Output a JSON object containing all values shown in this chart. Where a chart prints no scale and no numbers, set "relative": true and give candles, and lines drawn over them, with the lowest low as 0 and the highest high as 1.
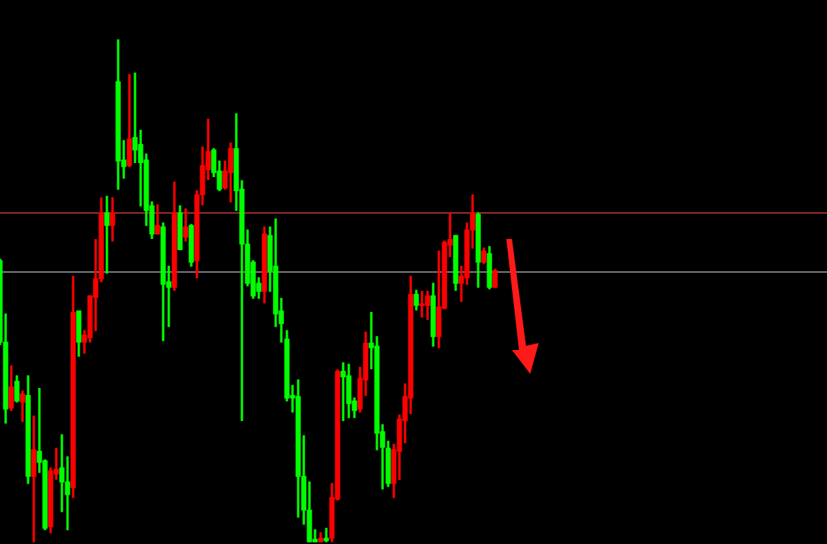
{
  "chart_data": {
    "type": "candlestick",
    "relative": true,
    "categories": [
      null,
      null,
      null,
      null,
      null,
      null,
      null,
      null,
      null,
      null,
      null,
      null,
      null,
      null,
      null,
      null,
      null,
      null,
      null,
      null,
      null,
      null,
      null,
      null,
      null,
      null,
      null,
      null,
      null,
      null,
      null,
      null,
      null,
      null,
      null,
      null,
      null,
      null,
      null,
      null,
      null,
      null,
      null,
      null,
      null,
      null,
      null,
      null,
      null,
      null,
      null,
      null,
      null,
      null,
      null,
      null,
      null,
      null,
      null,
      null,
      null,
      null,
      null,
      null,
      null,
      null,
      null,
      null,
      null,
      null,
      null,
      null,
      null,
      null,
      null,
      null,
      null,
      null,
      null,
      null,
      null,
      null,
      null,
      null,
      null,
      null,
      null,
      null,
      null
    ],
    "ohlc": [
      [
        0.56,
        0.563,
        0.393,
        0.398
      ],
      [
        0.398,
        0.454,
        0.237,
        0.265
      ],
      [
        0.267,
        0.351,
        0.262,
        0.309
      ],
      [
        0.32,
        0.331,
        0.279,
        0.281
      ],
      [
        0.279,
        0.301,
        0.24,
        0.295
      ],
      [
        0.292,
        0.331,
        0.117,
        0.131
      ],
      [
        0.131,
        0.251,
        0,
        0.184
      ],
      [
        0.181,
        0.306,
        0.139,
        0.159
      ],
      [
        0.162,
        0.164,
        0.025,
        0.028
      ],
      [
        0.031,
        0.148,
        0.019,
        0.142
      ],
      [
        0.136,
        0.187,
        0.125,
        0.145
      ],
      [
        0.148,
        0.214,
        0.061,
        0.12
      ],
      [
        0.12,
        0.17,
        0.025,
        0.095
      ],
      [
        0.109,
        0.529,
        0.089,
        0.457
      ],
      [
        0.46,
        0.46,
        0.37,
        0.398
      ],
      [
        0.398,
        0.421,
        0.376,
        0.412
      ],
      [
        0.407,
        0.49,
        0.398,
        0.49
      ],
      [
        0.487,
        0.602,
        0.421,
        0.524
      ],
      [
        0.524,
        0.685,
        0.518,
        0.655
      ],
      [
        0.655,
        0.688,
        0.535,
        0.63
      ],
      [
        0.63,
        0.685,
        0.599,
        0.655
      ],
      [
        0.916,
        1,
        0.702,
        0.758
      ],
      [
        0.76,
        0.799,
        0.724,
        0.747
      ],
      [
        0.749,
        0.93,
        0.747,
        0.802
      ],
      [
        0.805,
        0.933,
        0.755,
        0.78
      ],
      [
        0.791,
        0.819,
        0.669,
        0.755
      ],
      [
        0.76,
        0.772,
        0.63,
        0.66
      ],
      [
        0.669,
        0.677,
        0.604,
        0.613
      ],
      [
        0.613,
        0.671,
        0.613,
        0.63
      ],
      [
        0.627,
        0.635,
        0.401,
        0.513
      ],
      [
        0.518,
        0.549,
        0.429,
        0.507
      ],
      [
        0.507,
        0.716,
        0.501,
        0.655
      ],
      [
        0.655,
        0.669,
        0.582,
        0.582
      ],
      [
        0.607,
        0.663,
        0.599,
        0.627
      ],
      [
        0.63,
        0.632,
        0.549,
        0.557
      ],
      [
        0.56,
        0.699,
        0.526,
        0.691
      ],
      [
        0.691,
        0.786,
        0.671,
        0.749
      ],
      [
        0.741,
        0.841,
        0.721,
        0.777
      ],
      [
        0.78,
        0.783,
        0.727,
        0.735
      ],
      [
        0.738,
        0.758,
        0.699,
        0.702
      ],
      [
        0.705,
        0.758,
        0.702,
        0.738
      ],
      [
        0.735,
        0.794,
        0.677,
        0.783
      ],
      [
        0.783,
        0.852,
        0.66,
        0.699
      ],
      [
        0.702,
        0.719,
        0.242,
        0.593
      ],
      [
        0.593,
        0.621,
        0.51,
        0.515
      ],
      [
        0.557,
        0.56,
        0.485,
        0.49
      ],
      [
        0.515,
        0.526,
        0.485,
        0.499
      ],
      [
        0.499,
        0.627,
        0.476,
        0.613
      ],
      [
        0.61,
        0.627,
        0.499,
        0.54
      ],
      [
        0.549,
        0.643,
        0.429,
        0.454
      ],
      [
        0.46,
        0.485,
        0.398,
        0.435
      ],
      [
        0.404,
        0.421,
        0.281,
        0.287
      ],
      [
        0.292,
        0.312,
        0.259,
        0.287
      ],
      [
        0.29,
        0.323,
        0.05,
        0.131
      ],
      [
        0.131,
        0.212,
        0.036,
        0.064
      ],
      [
        0.064,
        0.12,
        0,
        0
      ],
      [
        0.006,
        0.025,
        0,
        0
      ],
      [
        0,
        0.019,
        0,
        0.008
      ],
      [
        0.008,
        0.028,
        0,
        0.003
      ],
      [
        0.008,
        0.117,
        0,
        0.089
      ],
      [
        0.086,
        0.343,
        0.084,
        0.34
      ],
      [
        0.34,
        0.357,
        0.242,
        0.329
      ],
      [
        0.331,
        0.354,
        0.248,
        0.276
      ],
      [
        0.281,
        0.287,
        0.248,
        0.262
      ],
      [
        0.265,
        0.348,
        0.259,
        0.326
      ],
      [
        0.323,
        0.418,
        0.292,
        0.396
      ],
      [
        0.396,
        0.457,
        0.345,
        0.387
      ],
      [
        0.39,
        0.409,
        0.184,
        0.217
      ],
      [
        0.22,
        0.234,
        0.106,
        0.189
      ],
      [
        0.187,
        0.201,
        0.111,
        0.117
      ],
      [
        0.117,
        0.195,
        0.089,
        0.184
      ],
      [
        0.181,
        0.253,
        0.125,
        0.245
      ],
      [
        0.242,
        0.315,
        0.198,
        0.29
      ],
      [
        0.287,
        0.529,
        0.256,
        0.493
      ],
      [
        0.493,
        0.501,
        0.462,
        0.471
      ],
      [
        0.471,
        0.499,
        0.448,
        0.474
      ],
      [
        0.471,
        0.499,
        0.443,
        0.49
      ],
      [
        0.49,
        0.515,
        0.39,
        0.409
      ],
      [
        0.409,
        0.579,
        0.387,
        0.468
      ],
      [
        0.465,
        0.599,
        0.465,
        0.596
      ],
      [
        0.591,
        0.655,
        0.568,
        0.602
      ],
      [
        0.61,
        0.61,
        0.501,
        0.515
      ],
      [
        0.515,
        0.549,
        0.479,
        0.529
      ],
      [
        0.526,
        0.635,
        0.513,
        0.621
      ],
      [
        0.621,
        0.691,
        0.585,
        0.655
      ],
      [
        0.652,
        0.655,
        0.507,
        0.557
      ],
      [
        0.557,
        0.585,
        0.554,
        0.579
      ],
      [
        0.574,
        0.588,
        0.504,
        0.507
      ],
      [
        0.507,
        0.543,
        0.507,
        0.54
      ]
    ],
    "colors": [
      "#00ff00",
      "#00ff00",
      "#ff0000",
      "#00ff00",
      "#ff0000",
      "#00ff00",
      "#ff0000",
      "#00ff00",
      "#00ff00",
      "#ff0000",
      "#ff0000",
      "#00ff00",
      "#00ff00",
      "#ff0000",
      "#00ff00",
      "#ff0000",
      "#ff0000",
      "#ff0000",
      "#ff0000",
      "#00ff00",
      "#ff0000",
      "#00ff00",
      "#00ff00",
      "#ff0000",
      "#00ff00",
      "#00ff00",
      "#00ff00",
      "#00ff00",
      "#ff0000",
      "#00ff00",
      "#00ff00",
      "#ff0000",
      "#00ff00",
      "#ff0000",
      "#00ff00",
      "#ff0000",
      "#ff0000",
      "#ff0000",
      "#00ff00",
      "#00ff00",
      "#ff0000",
      "#ff0000",
      "#00ff00",
      "#00ff00",
      "#00ff00",
      "#00ff00",
      "#00ff00",
      "#ff0000",
      "#00ff00",
      "#00ff00",
      "#00ff00",
      "#00ff00",
      "#00ff00",
      "#00ff00",
      "#00ff00",
      "#00ff00",
      "#00ff00",
      "#ff0000",
      "#00ff00",
      "#ff0000",
      "#ff0000",
      "#00ff00",
      "#00ff00",
      "#00ff00",
      "#ff0000",
      "#ff0000",
      "#00ff00",
      "#00ff00",
      "#00ff00",
      "#00ff00",
      "#ff0000",
      "#ff0000",
      "#ff0000",
      "#ff0000",
      "#00ff00",
      "#ff0000",
      "#ff0000",
      "#00ff00",
      "#ff0000",
      "#ff0000",
      "#ff0000",
      "#00ff00",
      "#ff0000",
      "#ff0000",
      "#ff0000",
      "#00ff00",
      "#ff0000",
      "#00ff00",
      "#ff0000"
    ],
    "ref_lines": [
      {
        "axis": "y",
        "value": 0.657,
        "color": "#a03030"
      },
      {
        "axis": "y",
        "value": 0.54,
        "color": "#808080"
      }
    ]
  }
}
